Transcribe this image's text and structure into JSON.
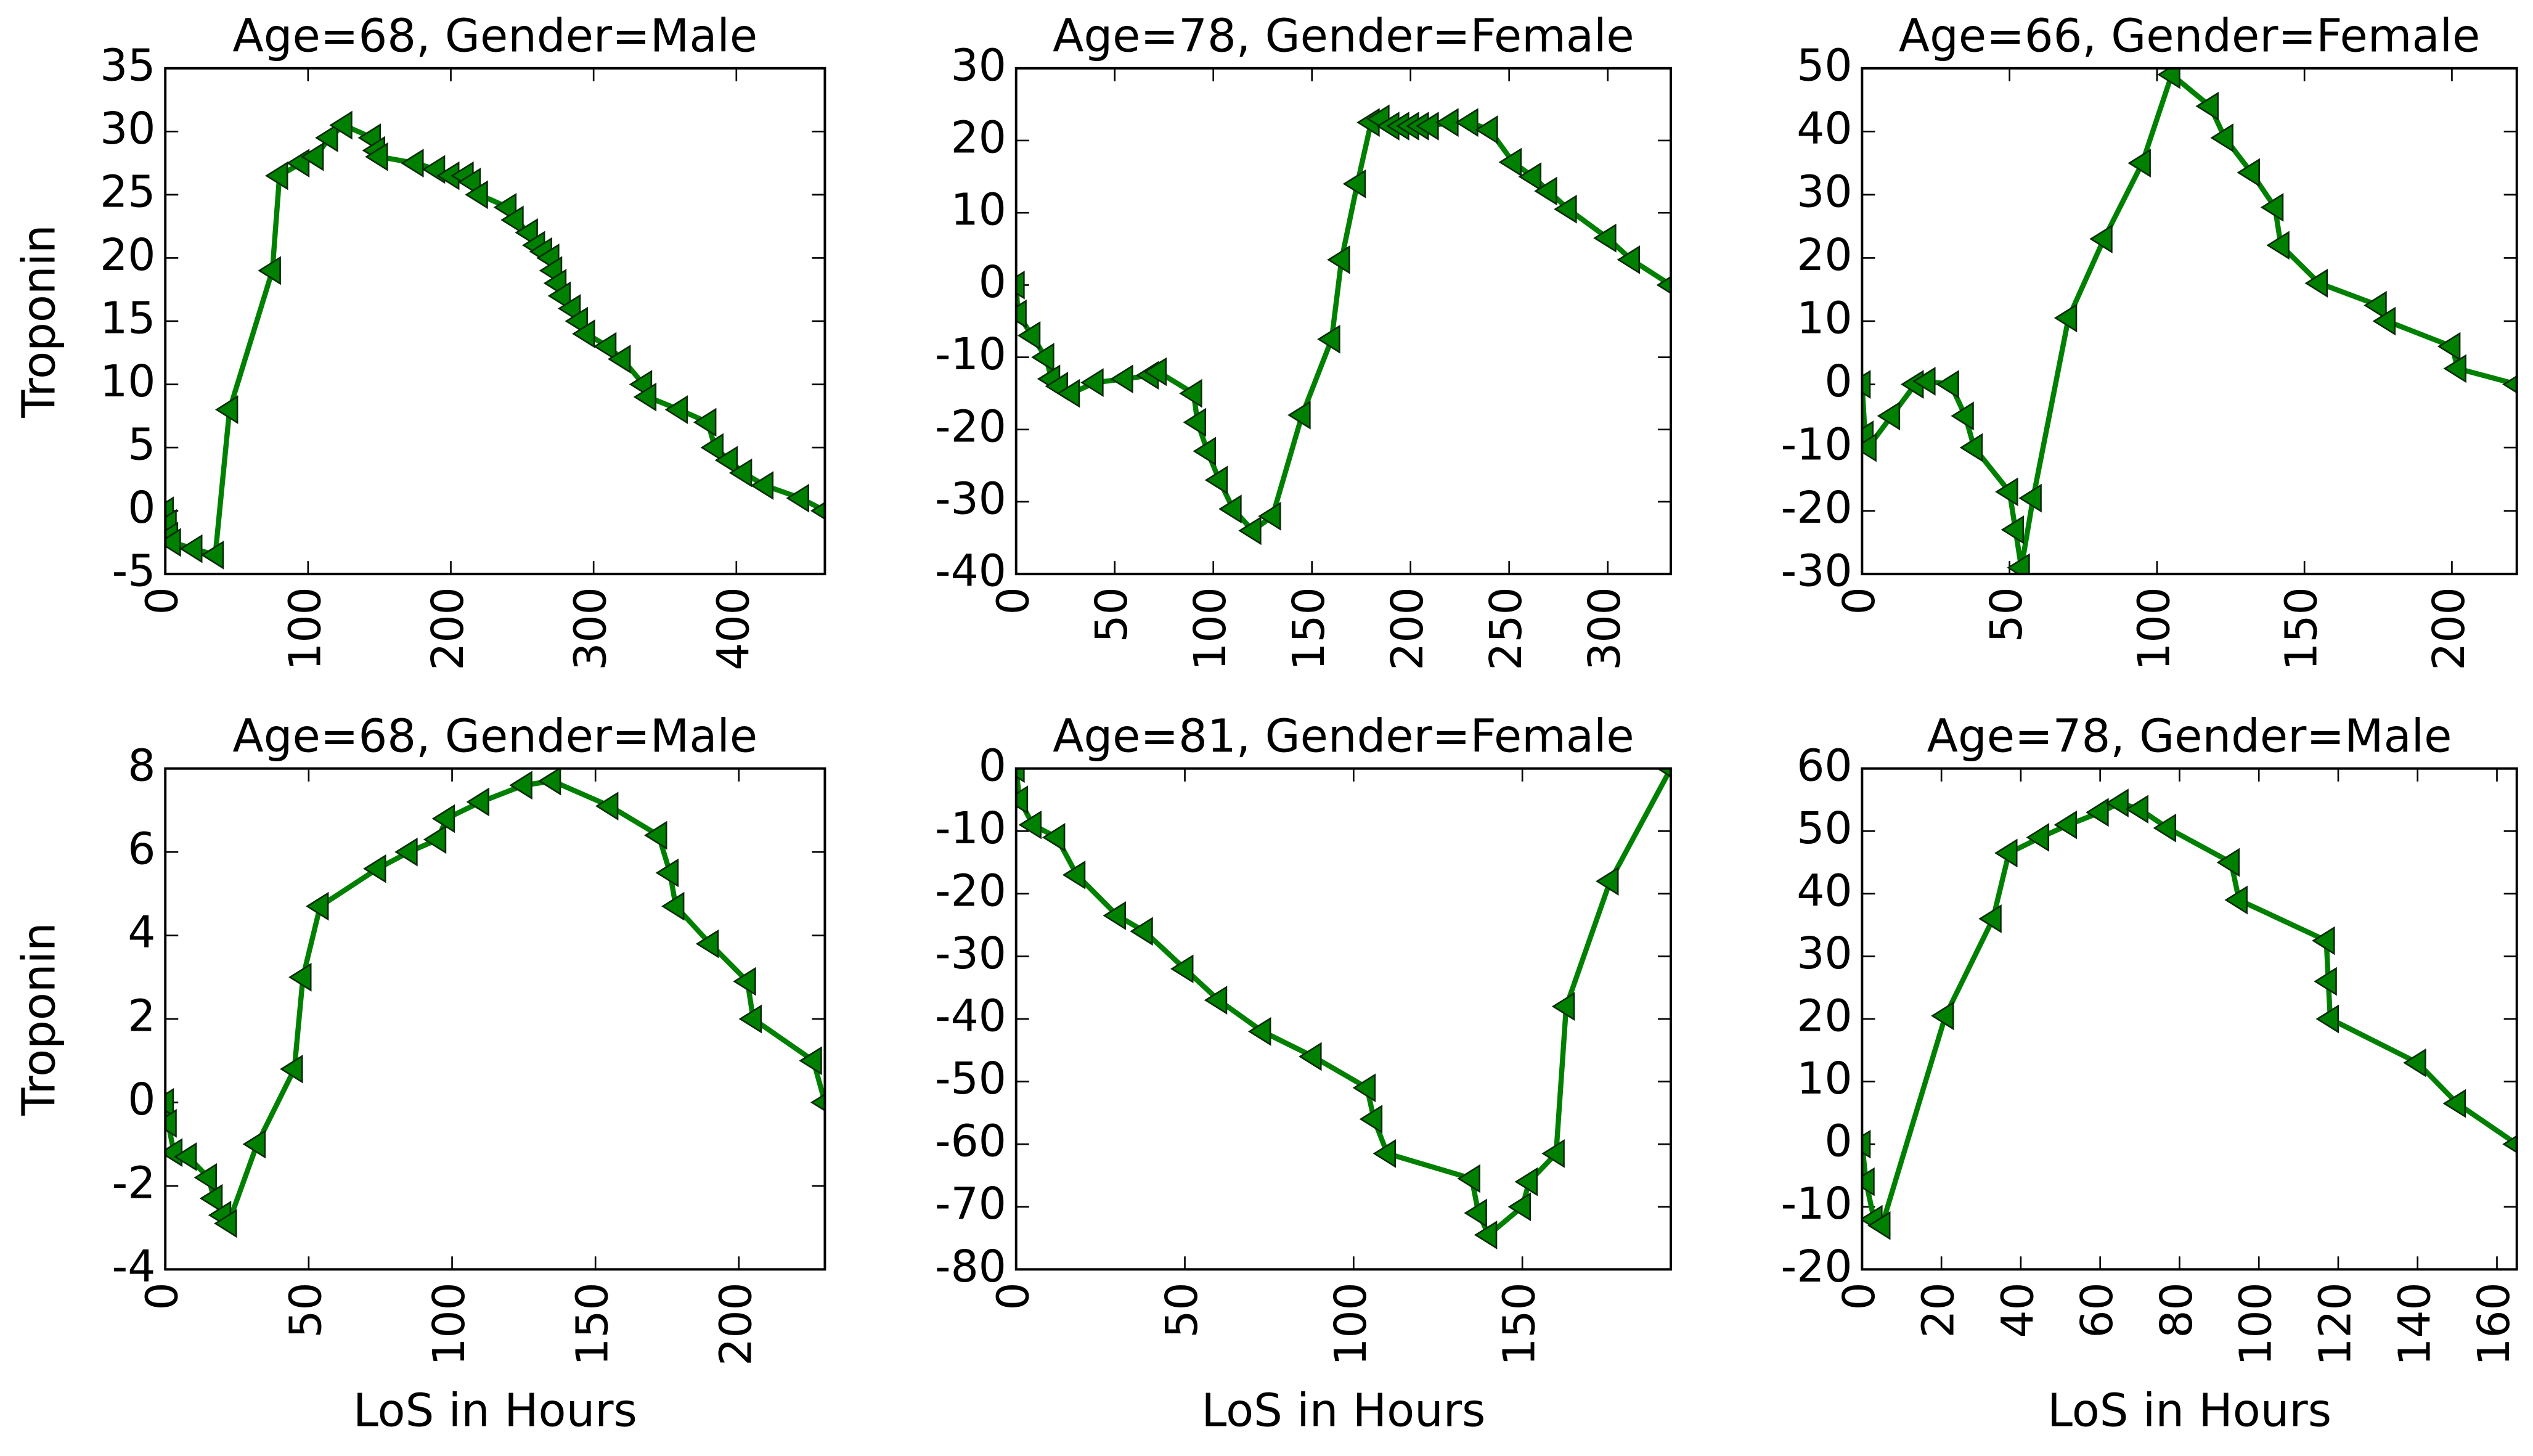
{
  "chart_data": [
    {
      "type": "line",
      "title": "Age=68, Gender=Male",
      "ylabel": "Troponin",
      "x": [
        0,
        2,
        3,
        5,
        20,
        35,
        45,
        75,
        80,
        95,
        105,
        115,
        125,
        145,
        148,
        150,
        175,
        190,
        200,
        210,
        215,
        220,
        240,
        245,
        255,
        260,
        265,
        270,
        272,
        275,
        278,
        285,
        290,
        295,
        310,
        320,
        335,
        338,
        360,
        380,
        385,
        395,
        405,
        420,
        445,
        462
      ],
      "values": [
        0,
        -1,
        -2,
        -2.5,
        -3,
        -3.5,
        8,
        19,
        26.5,
        27.5,
        28,
        29.5,
        30.5,
        29.5,
        28.5,
        28,
        27.5,
        27,
        26.5,
        26.5,
        26,
        25,
        24,
        23,
        22,
        21,
        20.5,
        20,
        19,
        18,
        17,
        16,
        15,
        14,
        13,
        12,
        10,
        9,
        8,
        7,
        5,
        4,
        3,
        2,
        1,
        0
      ],
      "color": "#008000",
      "xlim": [
        0,
        462
      ],
      "xticks": [
        0,
        100,
        200,
        300,
        400
      ],
      "ylim": [
        -5,
        35
      ],
      "yticks": [
        -5,
        0,
        5,
        10,
        15,
        20,
        25,
        30,
        35
      ]
    },
    {
      "type": "line",
      "title": "Age=78, Gender=Female",
      "x": [
        0,
        1,
        8,
        15,
        18,
        22,
        28,
        40,
        55,
        68,
        72,
        90,
        92,
        97,
        103,
        110,
        120,
        130,
        145,
        160,
        165,
        173,
        180,
        185,
        190,
        195,
        200,
        205,
        210,
        220,
        230,
        240,
        252,
        262,
        270,
        280,
        300,
        312,
        332
      ],
      "values": [
        0,
        -4,
        -7,
        -10,
        -13,
        -14,
        -15,
        -13.5,
        -13,
        -12.5,
        -12,
        -15,
        -19,
        -23,
        -27,
        -31,
        -34,
        -32,
        -18,
        -7.5,
        3.5,
        14,
        22.5,
        23,
        22,
        22,
        22,
        22,
        22,
        22.5,
        22.5,
        21.5,
        17,
        15,
        13,
        10.5,
        6.5,
        3.5,
        0
      ],
      "color": "#008000",
      "xlim": [
        0,
        332
      ],
      "xticks": [
        0,
        50,
        100,
        150,
        200,
        250,
        300
      ],
      "ylim": [
        -40,
        30
      ],
      "yticks": [
        -40,
        -30,
        -20,
        -10,
        0,
        10,
        20,
        30
      ]
    },
    {
      "type": "line",
      "title": "Age=66, Gender=Female",
      "x": [
        0,
        1,
        2,
        10,
        18,
        22,
        30,
        35,
        38,
        50,
        52,
        54,
        58,
        70,
        82,
        95,
        105,
        118,
        123,
        132,
        140,
        142,
        155,
        175,
        178,
        200,
        202,
        222
      ],
      "values": [
        0,
        -8,
        -10,
        -5,
        0,
        0.5,
        0,
        -5,
        -10,
        -17,
        -23,
        -29,
        -18,
        10.5,
        23,
        35,
        49,
        44,
        39,
        33.5,
        28,
        22,
        16,
        12.5,
        10,
        6,
        2.5,
        0
      ],
      "color": "#008000",
      "xlim": [
        0,
        222
      ],
      "xticks": [
        0,
        50,
        100,
        150,
        200
      ],
      "ylim": [
        -30,
        50
      ],
      "yticks": [
        -30,
        -20,
        -10,
        0,
        10,
        20,
        30,
        40,
        50
      ]
    },
    {
      "type": "line",
      "title": "Age=68, Gender=Male",
      "ylabel": "Troponin",
      "xlabel": "LoS in Hours",
      "x": [
        0,
        1,
        3,
        8,
        15,
        17,
        20,
        22,
        32,
        45,
        48,
        54,
        74,
        85,
        95,
        98,
        110,
        125,
        135,
        155,
        172,
        176,
        178,
        190,
        203,
        205,
        226,
        230
      ],
      "values": [
        0,
        -0.5,
        -1.2,
        -1.3,
        -1.8,
        -2.3,
        -2.7,
        -2.9,
        -1,
        0.8,
        3,
        4.7,
        5.6,
        6,
        6.3,
        6.8,
        7.2,
        7.6,
        7.7,
        7.1,
        6.4,
        5.5,
        4.7,
        3.8,
        2.9,
        2,
        1,
        0
      ],
      "color": "#008000",
      "xlim": [
        0,
        230
      ],
      "xticks": [
        0,
        50,
        100,
        150,
        200
      ],
      "ylim": [
        -4,
        8
      ],
      "yticks": [
        -4,
        -2,
        0,
        2,
        4,
        6,
        8
      ]
    },
    {
      "type": "line",
      "title": "Age=81, Gender=Female",
      "xlabel": "LoS in Hours",
      "x": [
        0,
        1,
        5,
        12,
        18,
        30,
        38,
        50,
        60,
        73,
        88,
        104,
        106,
        110,
        135,
        137,
        140,
        150,
        152,
        160,
        163,
        176,
        194
      ],
      "values": [
        0,
        -5,
        -9,
        -11,
        -17,
        -23.5,
        -26,
        -32,
        -37,
        -42,
        -46,
        -51,
        -56,
        -61.5,
        -65.5,
        -71,
        -74.5,
        -70,
        -66,
        -61.5,
        -38,
        -18,
        0
      ],
      "color": "#008000",
      "xlim": [
        0,
        194
      ],
      "xticks": [
        0,
        50,
        100,
        150
      ],
      "ylim": [
        -80,
        0
      ],
      "yticks": [
        -80,
        -70,
        -60,
        -50,
        -40,
        -30,
        -20,
        -10,
        0
      ]
    },
    {
      "type": "line",
      "title": "Age=78, Gender=Male",
      "xlabel": "LoS in Hours",
      "x": [
        0,
        1,
        3,
        5,
        21,
        33,
        37,
        45,
        52,
        60,
        65,
        70,
        77,
        93,
        95,
        117,
        117.5,
        118,
        140,
        150,
        165
      ],
      "values": [
        0,
        -6,
        -12,
        -13,
        20.5,
        36,
        46.5,
        49,
        51,
        53,
        54.5,
        53.5,
        50.5,
        45,
        39,
        32.5,
        26,
        20,
        13,
        6.5,
        0
      ],
      "color": "#008000",
      "xlim": [
        0,
        165
      ],
      "xticks": [
        0,
        20,
        40,
        60,
        80,
        100,
        120,
        140,
        160
      ],
      "ylim": [
        -20,
        60
      ],
      "yticks": [
        -20,
        -10,
        0,
        10,
        20,
        30,
        40,
        50,
        60
      ]
    }
  ]
}
